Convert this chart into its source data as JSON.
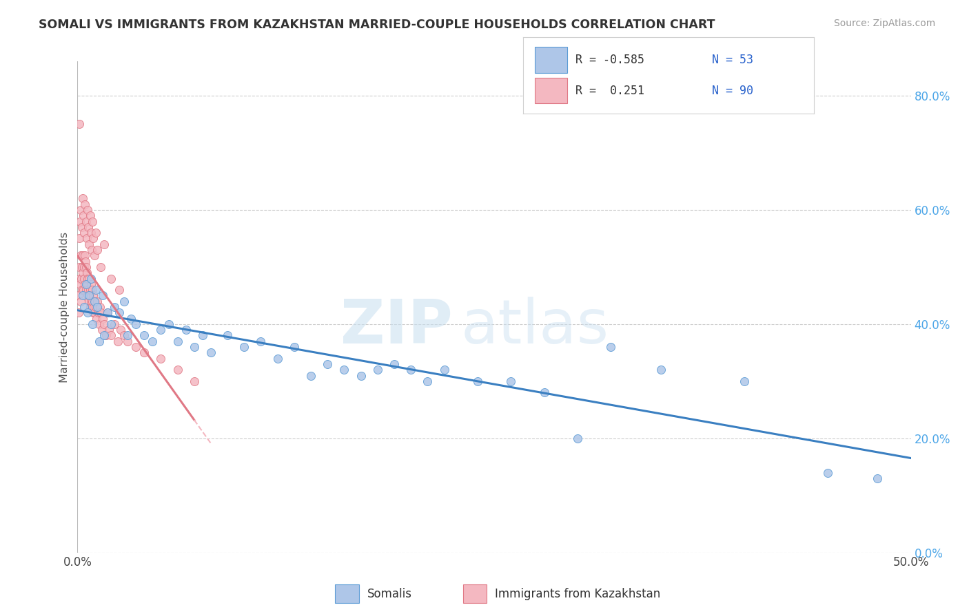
{
  "title": "SOMALI VS IMMIGRANTS FROM KAZAKHSTAN MARRIED-COUPLE HOUSEHOLDS CORRELATION CHART",
  "source": "Source: ZipAtlas.com",
  "ylabel": "Married-couple Households",
  "yticks": [
    0,
    20,
    40,
    60,
    80
  ],
  "ytick_labels": [
    "0.0%",
    "20.0%",
    "40.0%",
    "60.0%",
    "80.0%"
  ],
  "xticks": [
    0,
    50
  ],
  "xtick_labels": [
    "0.0%",
    "50.0%"
  ],
  "xlim": [
    0,
    50
  ],
  "ylim": [
    0,
    86
  ],
  "watermark_text": "ZIP",
  "watermark_text2": "atlas",
  "somali_color": "#aec6e8",
  "somali_edge": "#5b9bd5",
  "kazakh_color": "#f4b8c1",
  "kazakh_edge": "#e07885",
  "trend_blue": "#3a7fc1",
  "trend_pink_solid": "#e07885",
  "trend_pink_dash": "#f4b8c1",
  "r_color": "#2962cc",
  "legend_label_color": "#333333",
  "somali_x": [
    0.3,
    0.4,
    0.5,
    0.6,
    0.7,
    0.8,
    0.9,
    1.0,
    1.1,
    1.2,
    1.3,
    1.5,
    1.6,
    1.8,
    2.0,
    2.2,
    2.5,
    2.8,
    3.0,
    3.2,
    3.5,
    4.0,
    4.5,
    5.0,
    5.5,
    6.0,
    6.5,
    7.0,
    7.5,
    8.0,
    9.0,
    10.0,
    11.0,
    12.0,
    13.0,
    14.0,
    15.0,
    16.0,
    17.0,
    18.0,
    19.0,
    20.0,
    21.0,
    22.0,
    24.0,
    26.0,
    28.0,
    30.0,
    32.0,
    35.0,
    40.0,
    45.0,
    48.0
  ],
  "somali_y": [
    45,
    43,
    47,
    42,
    45,
    48,
    40,
    44,
    46,
    43,
    37,
    45,
    38,
    42,
    40,
    43,
    42,
    44,
    38,
    41,
    40,
    38,
    37,
    39,
    40,
    37,
    39,
    36,
    38,
    35,
    38,
    36,
    37,
    34,
    36,
    31,
    33,
    32,
    31,
    32,
    33,
    32,
    30,
    32,
    30,
    30,
    28,
    20,
    36,
    32,
    30,
    14,
    13
  ],
  "kazakh_x": [
    0.05,
    0.08,
    0.1,
    0.12,
    0.15,
    0.18,
    0.2,
    0.22,
    0.25,
    0.28,
    0.3,
    0.32,
    0.35,
    0.38,
    0.4,
    0.42,
    0.45,
    0.48,
    0.5,
    0.52,
    0.55,
    0.58,
    0.6,
    0.62,
    0.65,
    0.68,
    0.7,
    0.72,
    0.75,
    0.78,
    0.8,
    0.82,
    0.85,
    0.88,
    0.9,
    0.92,
    0.95,
    0.98,
    1.0,
    1.05,
    1.1,
    1.15,
    1.2,
    1.25,
    1.3,
    1.35,
    1.4,
    1.45,
    1.5,
    1.6,
    1.7,
    1.8,
    1.9,
    2.0,
    2.2,
    2.4,
    2.6,
    2.8,
    3.0,
    3.5,
    4.0,
    5.0,
    6.0,
    7.0,
    0.1,
    0.15,
    0.2,
    0.25,
    0.3,
    0.35,
    0.4,
    0.45,
    0.5,
    0.55,
    0.6,
    0.65,
    0.7,
    0.75,
    0.8,
    0.85,
    0.9,
    0.95,
    1.0,
    1.1,
    1.2,
    1.4,
    1.6,
    2.0,
    2.5,
    0.1
  ],
  "kazakh_y": [
    42,
    45,
    48,
    50,
    47,
    52,
    44,
    48,
    46,
    50,
    52,
    49,
    46,
    50,
    48,
    52,
    47,
    51,
    50,
    46,
    49,
    47,
    45,
    48,
    46,
    44,
    48,
    45,
    43,
    46,
    44,
    47,
    43,
    46,
    44,
    42,
    45,
    43,
    42,
    44,
    43,
    41,
    44,
    42,
    40,
    43,
    42,
    39,
    41,
    40,
    38,
    42,
    39,
    38,
    40,
    37,
    39,
    38,
    37,
    36,
    35,
    34,
    32,
    30,
    55,
    58,
    60,
    57,
    62,
    59,
    56,
    61,
    58,
    55,
    60,
    57,
    54,
    59,
    56,
    53,
    58,
    55,
    52,
    56,
    53,
    50,
    54,
    48,
    46,
    75
  ]
}
